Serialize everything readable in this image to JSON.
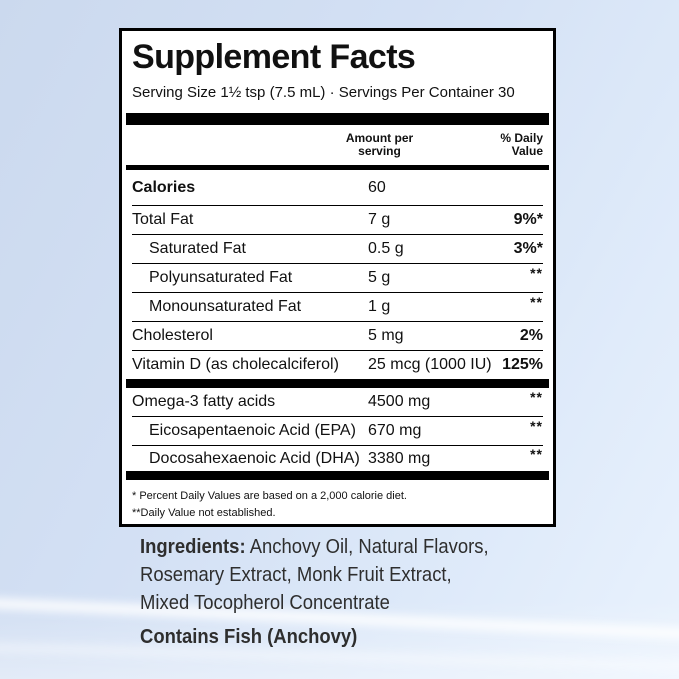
{
  "colors": {
    "background_top_left": "#cbd9ee",
    "background_bottom_right": "#e9f2fd",
    "label_background": "#ffffff",
    "label_border": "#000000",
    "label_text": "#111111",
    "body_text": "#2e2e2e"
  },
  "label": {
    "title": "Supplement Facts",
    "serving_line": "Serving Size 1½ tsp (7.5 mL) · Servings Per Container 30",
    "header": {
      "amount_line1": "Amount per",
      "amount_line2": "serving",
      "dv_line1": "% Daily",
      "dv_line2": "Value"
    },
    "rows": [
      {
        "name": "Calories",
        "amount": "60",
        "dv": ""
      },
      {
        "name": "Total Fat",
        "amount": "7 g",
        "dv": "9%*"
      },
      {
        "name": "Saturated Fat",
        "amount": "0.5 g",
        "dv": "3%*"
      },
      {
        "name": "Polyunsaturated Fat",
        "amount": "5 g",
        "dv": "**"
      },
      {
        "name": "Monounsaturated Fat",
        "amount": "1 g",
        "dv": "**"
      },
      {
        "name": "Cholesterol",
        "amount": "5 mg",
        "dv": "2%"
      },
      {
        "name": "Vitamin D (as cholecalciferol)",
        "amount": "25 mcg (1000 IU)",
        "dv": "125%"
      },
      {
        "name": "Omega-3 fatty acids",
        "amount": "4500 mg",
        "dv": "**"
      },
      {
        "name": "Eicosapentaenoic Acid (EPA)",
        "amount": "670 mg",
        "dv": "**"
      },
      {
        "name": "Docosahexaenoic Acid (DHA)",
        "amount": "3380 mg",
        "dv": "**"
      }
    ],
    "footnotes": {
      "line1": "* Percent Daily Values are based on a 2,000 calorie diet.",
      "line2": "**Daily Value not established."
    }
  },
  "ingredients": {
    "heading": "Ingredients:",
    "line1_rest": "Anchovy Oil, Natural Flavors,",
    "line2": "Rosemary Extract, Monk Fruit Extract,",
    "line3": "Mixed Tocopherol Concentrate"
  },
  "allergen": "Contains Fish (Anchovy)"
}
